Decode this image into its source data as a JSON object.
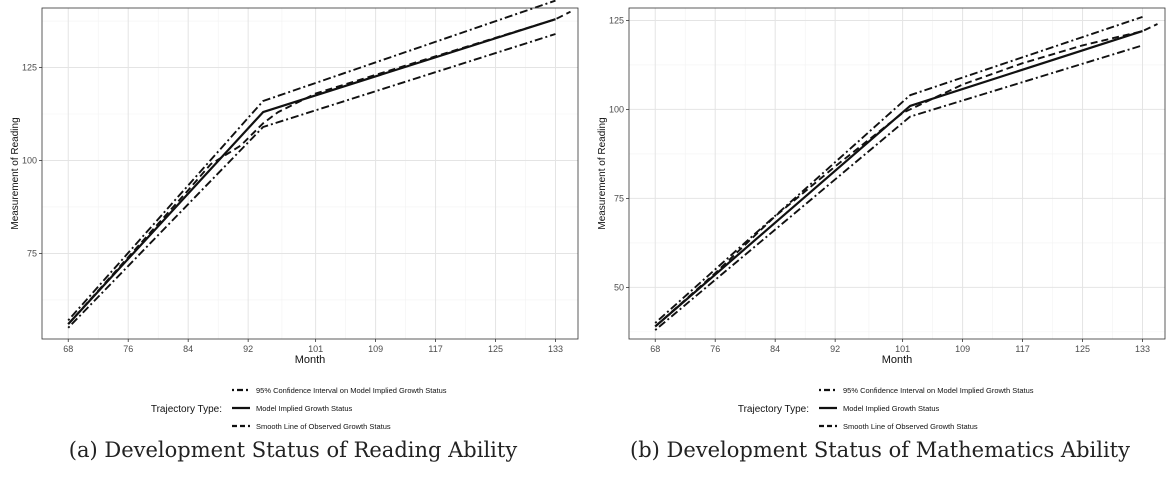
{
  "chart_data": [
    {
      "type": "line",
      "caption": "(a) Development Status of Reading Ability",
      "xlabel": "Month",
      "ylabel": "Measurement of Reading",
      "xlim": [
        64.5,
        136
      ],
      "ylim": [
        52,
        141
      ],
      "xticks": [
        68,
        76,
        84,
        92,
        101,
        109,
        117,
        125,
        133
      ],
      "yticks": [
        75,
        100,
        125
      ],
      "grid": true,
      "legend_position": "bottom",
      "legend_title": "Trajectory Type:",
      "series": [
        {
          "name": "95% Confidence Interval on Model Implied Growth Status",
          "linestyle": "dotdash",
          "segments": [
            {
              "x": [
                68,
                94,
                133
              ],
              "y": [
                57,
                116,
                143
              ]
            },
            {
              "x": [
                68,
                94,
                133
              ],
              "y": [
                55,
                109,
                134
              ]
            }
          ]
        },
        {
          "name": "Model Implied Growth Status",
          "linestyle": "solid",
          "segments": [
            {
              "x": [
                68,
                94,
                133
              ],
              "y": [
                56,
                113,
                138
              ]
            }
          ]
        },
        {
          "name": "Smooth Line of Observed Growth Status",
          "linestyle": "dashed",
          "segments": [
            {
              "x": [
                68,
                76,
                84,
                87,
                91,
                94,
                96,
                101,
                109,
                117,
                125,
                133,
                135
              ],
              "y": [
                56,
                74,
                92,
                99,
                104,
                110,
                113,
                118,
                123,
                128,
                133,
                138,
                140
              ]
            }
          ]
        }
      ]
    },
    {
      "type": "line",
      "caption": "(b) Development Status of Mathematics Ability",
      "xlabel": "Month",
      "ylabel": "Measurement of Reading",
      "xlim": [
        64.5,
        136
      ],
      "ylim": [
        35.5,
        128.5
      ],
      "xticks": [
        68,
        76,
        84,
        92,
        101,
        109,
        117,
        125,
        133
      ],
      "yticks": [
        50,
        75,
        100,
        125
      ],
      "grid": true,
      "legend_position": "bottom",
      "legend_title": "Trajectory Type:",
      "series": [
        {
          "name": "95% Confidence Interval on Model Implied Growth Status",
          "linestyle": "dotdash",
          "segments": [
            {
              "x": [
                68,
                102,
                133
              ],
              "y": [
                40,
                104,
                126
              ]
            },
            {
              "x": [
                68,
                102,
                133
              ],
              "y": [
                38,
                98,
                118
              ]
            }
          ]
        },
        {
          "name": "Model Implied Growth Status",
          "linestyle": "solid",
          "segments": [
            {
              "x": [
                68,
                102,
                133
              ],
              "y": [
                39,
                101,
                122
              ]
            }
          ]
        },
        {
          "name": "Smooth Line of Observed Growth Status",
          "linestyle": "dashed",
          "segments": [
            {
              "x": [
                68,
                76,
                84,
                92,
                101,
                109,
                117,
                125,
                133,
                135
              ],
              "y": [
                39,
                54,
                70,
                84,
                99,
                107,
                113,
                118,
                122,
                124
              ]
            }
          ]
        }
      ]
    }
  ]
}
